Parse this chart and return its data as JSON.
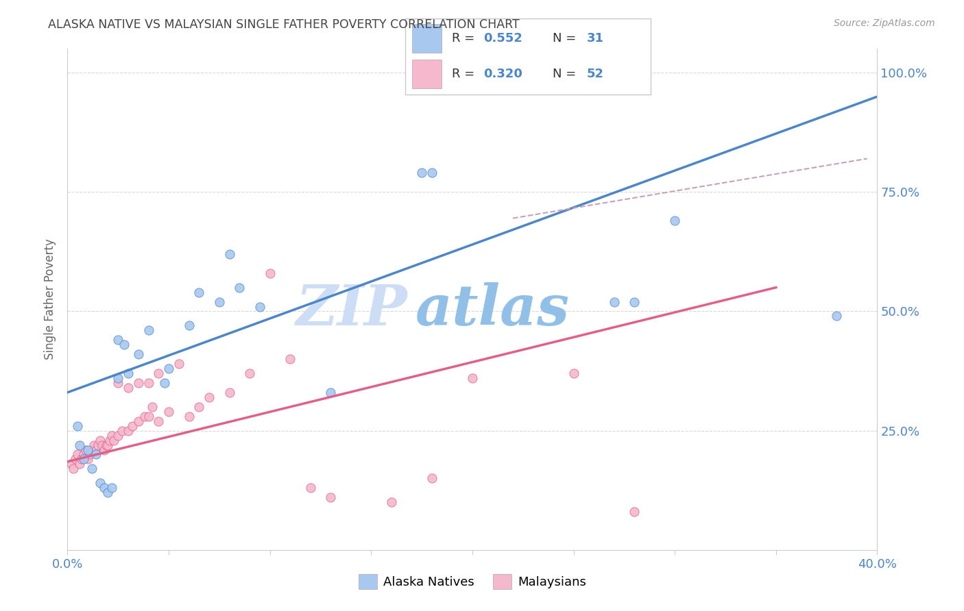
{
  "title": "ALASKA NATIVE VS MALAYSIAN SINGLE FATHER POVERTY CORRELATION CHART",
  "source": "Source: ZipAtlas.com",
  "ylabel": "Single Father Poverty",
  "x_min": 0.0,
  "x_max": 0.4,
  "y_min": 0.0,
  "y_max": 1.05,
  "y_ticks": [
    0.25,
    0.5,
    0.75,
    1.0
  ],
  "y_tick_labels": [
    "25.0%",
    "50.0%",
    "75.0%",
    "100.0%"
  ],
  "x_ticks": [
    0.0,
    0.05,
    0.1,
    0.15,
    0.2,
    0.25,
    0.3,
    0.35,
    0.4
  ],
  "alaska_color": "#a8c8f0",
  "alaska_color_dark": "#4a86c8",
  "malaysian_color": "#f5b8cc",
  "malaysian_color_dark": "#e0608a",
  "alaska_R": "0.552",
  "alaska_N": "31",
  "malaysian_R": "0.320",
  "malaysian_N": "52",
  "legend_label_alaska": "Alaska Natives",
  "legend_label_malaysian": "Malaysians",
  "alaska_scatter_x": [
    0.005,
    0.006,
    0.008,
    0.01,
    0.012,
    0.014,
    0.016,
    0.018,
    0.02,
    0.022,
    0.025,
    0.028,
    0.03,
    0.035,
    0.04,
    0.05,
    0.06,
    0.065,
    0.075,
    0.08,
    0.085,
    0.095,
    0.13,
    0.175,
    0.18,
    0.27,
    0.28,
    0.3,
    0.38,
    0.025,
    0.048
  ],
  "alaska_scatter_y": [
    0.26,
    0.22,
    0.19,
    0.21,
    0.17,
    0.2,
    0.14,
    0.13,
    0.12,
    0.13,
    0.44,
    0.43,
    0.37,
    0.41,
    0.46,
    0.38,
    0.47,
    0.54,
    0.52,
    0.62,
    0.55,
    0.51,
    0.33,
    0.79,
    0.79,
    0.52,
    0.52,
    0.69,
    0.49,
    0.36,
    0.35
  ],
  "malaysian_scatter_x": [
    0.002,
    0.003,
    0.004,
    0.005,
    0.006,
    0.007,
    0.008,
    0.009,
    0.01,
    0.011,
    0.012,
    0.013,
    0.014,
    0.015,
    0.016,
    0.017,
    0.018,
    0.019,
    0.02,
    0.021,
    0.022,
    0.023,
    0.025,
    0.027,
    0.03,
    0.032,
    0.035,
    0.038,
    0.04,
    0.042,
    0.045,
    0.05,
    0.06,
    0.065,
    0.07,
    0.08,
    0.09,
    0.1,
    0.11,
    0.13,
    0.16,
    0.18,
    0.2,
    0.25,
    0.28,
    0.025,
    0.03,
    0.035,
    0.04,
    0.045,
    0.055,
    0.12
  ],
  "malaysian_scatter_y": [
    0.18,
    0.17,
    0.19,
    0.2,
    0.18,
    0.19,
    0.2,
    0.21,
    0.19,
    0.2,
    0.21,
    0.22,
    0.21,
    0.22,
    0.23,
    0.22,
    0.21,
    0.22,
    0.22,
    0.23,
    0.24,
    0.23,
    0.24,
    0.25,
    0.25,
    0.26,
    0.27,
    0.28,
    0.28,
    0.3,
    0.27,
    0.29,
    0.28,
    0.3,
    0.32,
    0.33,
    0.37,
    0.58,
    0.4,
    0.11,
    0.1,
    0.15,
    0.36,
    0.37,
    0.08,
    0.35,
    0.34,
    0.35,
    0.35,
    0.37,
    0.39,
    0.13
  ],
  "alaska_line_x0": 0.0,
  "alaska_line_x1": 0.4,
  "alaska_line_y0": 0.33,
  "alaska_line_y1": 0.95,
  "malaysian_line_x0": 0.0,
  "malaysian_line_x1": 0.35,
  "malaysian_line_y0": 0.185,
  "malaysian_line_y1": 0.55,
  "dashed_line_x0": 0.22,
  "dashed_line_x1": 0.395,
  "dashed_line_y0": 0.695,
  "dashed_line_y1": 0.82,
  "background_color": "#ffffff",
  "grid_color": "#d8d8d8",
  "title_color": "#444444",
  "axis_label_color": "#4a86c8",
  "watermark_zip_color": "#ccddf5",
  "watermark_atlas_color": "#90c0e8",
  "watermark_fontsize": 60
}
